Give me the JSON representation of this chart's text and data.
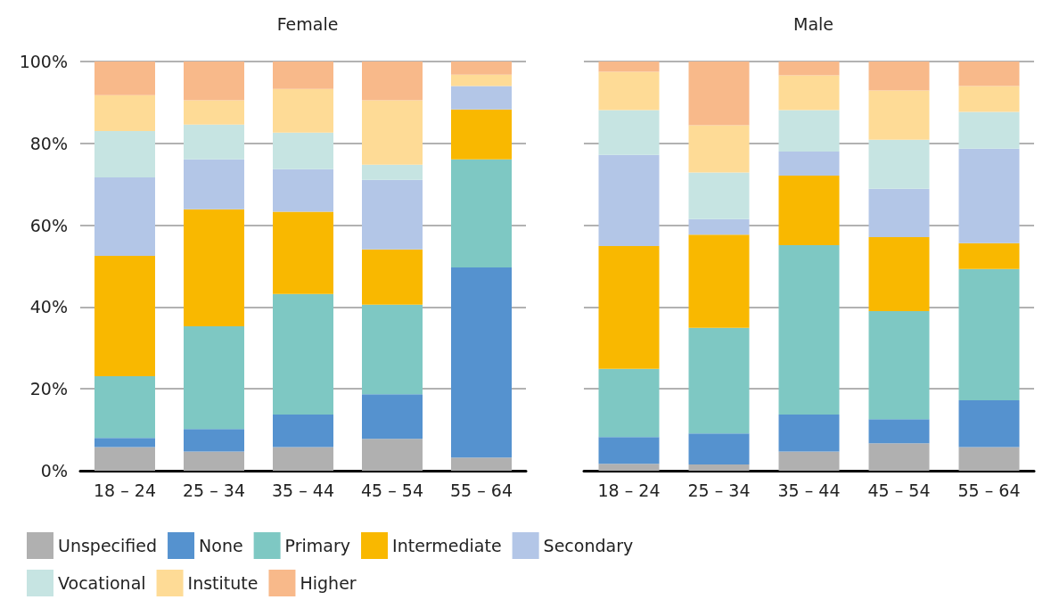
{
  "chart_data": [
    {
      "type": "bar",
      "title": "Female",
      "stacked": true,
      "categories": [
        "18 – 24",
        "25 – 34",
        "35 – 44",
        "45 – 54",
        "55 – 64"
      ],
      "ylim": [
        0,
        100
      ],
      "yticks": [
        {
          "value": 0,
          "label": "0%"
        },
        {
          "value": 20,
          "label": "20%"
        },
        {
          "value": 40,
          "label": "40%"
        },
        {
          "value": 60,
          "label": "60%"
        },
        {
          "value": 80,
          "label": "80%"
        },
        {
          "value": 100,
          "label": "100%"
        }
      ],
      "grid": "y",
      "legend": "bottom",
      "series": [
        {
          "name": "Unspecified",
          "color": "#b0b0b0",
          "values": [
            5.8,
            4.7,
            5.8,
            7.8,
            3.2
          ]
        },
        {
          "name": "None",
          "color": "#5592cf",
          "values": [
            2.2,
            5.5,
            7.9,
            10.9,
            46.5
          ]
        },
        {
          "name": "Primary",
          "color": "#7ec8c3",
          "values": [
            15.1,
            25.1,
            29.5,
            21.9,
            26.4
          ]
        },
        {
          "name": "Intermediate",
          "color": "#f9b800",
          "values": [
            29.4,
            28.6,
            20.1,
            13.5,
            12.2
          ]
        },
        {
          "name": "Secondary",
          "color": "#b3c6e7",
          "values": [
            19.2,
            12.2,
            10.4,
            17.0,
            5.7
          ]
        },
        {
          "name": "Vocational",
          "color": "#c6e4e2",
          "values": [
            11.3,
            8.5,
            8.9,
            3.7,
            0
          ]
        },
        {
          "name": "Institute",
          "color": "#fedb96",
          "values": [
            8.8,
            5.9,
            10.7,
            15.7,
            2.8
          ]
        },
        {
          "name": "Higher",
          "color": "#f8b98a",
          "values": [
            8.2,
            9.5,
            6.7,
            9.5,
            3.2
          ]
        }
      ]
    },
    {
      "type": "bar",
      "title": "Male",
      "stacked": true,
      "categories": [
        "18 – 24",
        "25 – 34",
        "35 – 44",
        "45 – 54",
        "55 – 64"
      ],
      "ylim": [
        0,
        100
      ],
      "yticks": [
        0,
        20,
        40,
        60,
        80,
        100
      ],
      "grid": "y",
      "tick_labels": "x",
      "series": [
        {
          "color": "#b0b0b0",
          "values": [
            1.7,
            1.5,
            4.7,
            6.7,
            5.8
          ]
        },
        {
          "color": "#5592cf",
          "values": [
            6.5,
            7.6,
            9.0,
            5.9,
            11.4
          ]
        },
        {
          "color": "#7ec8c3",
          "values": [
            16.7,
            25.8,
            41.4,
            26.4,
            32.1
          ]
        },
        {
          "color": "#f9b800",
          "values": [
            30.0,
            22.8,
            17.0,
            18.1,
            6.3
          ]
        },
        {
          "color": "#b3c6e7",
          "values": [
            22.3,
            3.8,
            5.9,
            11.8,
            23.1
          ]
        },
        {
          "color": "#c6e4e2",
          "values": [
            10.9,
            11.4,
            10.1,
            12.0,
            9.0
          ]
        },
        {
          "color": "#fedb96",
          "values": [
            9.4,
            11.5,
            8.5,
            12.0,
            6.3
          ]
        },
        {
          "color": "#f8b98a",
          "values": [
            2.5,
            15.6,
            3.4,
            7.1,
            6.0
          ]
        }
      ]
    }
  ]
}
